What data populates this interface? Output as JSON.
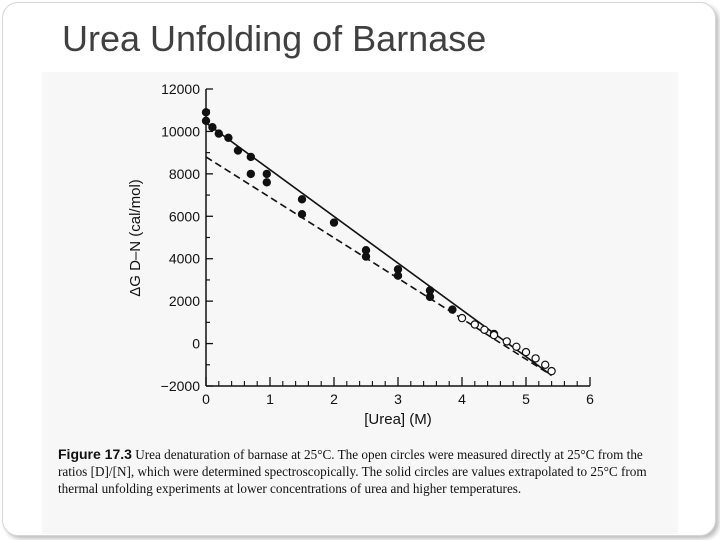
{
  "slide": {
    "title": "Urea Unfolding of Barnase"
  },
  "colors": {
    "ink": "#111111",
    "title": "#404040",
    "scan_bg": "#f7f7f7"
  },
  "caption": {
    "label": "Figure 17.3",
    "text": "Urea denaturation of barnase at 25°C. The open circles were measured directly at 25°C from the ratios [D]/[N], which were determined spectroscopically. The solid circles are values extrapolated to 25°C from thermal unfolding experiments at lower concentrations of urea and higher temperatures."
  },
  "chart_data": {
    "type": "scatter",
    "xlabel": "[Urea] (M)",
    "ylabel": "ΔG D–N (cal/mol)",
    "xlim": [
      0,
      6
    ],
    "ylim": [
      -2000,
      12000
    ],
    "x_ticks": [
      0,
      1,
      2,
      3,
      4,
      5,
      6
    ],
    "y_ticks": [
      -2000,
      0,
      2000,
      4000,
      6000,
      8000,
      10000,
      12000
    ],
    "y_tick_labels": [
      "−2000",
      "0",
      "2000",
      "4000",
      "6000",
      "8000",
      "10000",
      "12000"
    ],
    "grid": false,
    "series": [
      {
        "marker": "solid-circle",
        "points": [
          [
            0.0,
            10900
          ],
          [
            0.0,
            10500
          ],
          [
            0.1,
            10200
          ],
          [
            0.2,
            9900
          ],
          [
            0.35,
            9700
          ],
          [
            0.5,
            9100
          ],
          [
            0.7,
            8800
          ],
          [
            0.7,
            8000
          ],
          [
            0.95,
            8000
          ],
          [
            0.95,
            7600
          ],
          [
            1.5,
            6800
          ],
          [
            1.5,
            6100
          ],
          [
            2.0,
            5700
          ],
          [
            2.5,
            4400
          ],
          [
            2.5,
            4100
          ],
          [
            3.0,
            3500
          ],
          [
            3.0,
            3200
          ],
          [
            3.5,
            2500
          ],
          [
            3.5,
            2200
          ],
          [
            3.85,
            1600
          ],
          [
            4.5,
            450
          ]
        ]
      },
      {
        "marker": "open-circle",
        "points": [
          [
            4.0,
            1200
          ],
          [
            4.2,
            900
          ],
          [
            4.35,
            650
          ],
          [
            4.5,
            400
          ],
          [
            4.7,
            100
          ],
          [
            4.85,
            -150
          ],
          [
            5.0,
            -400
          ],
          [
            5.15,
            -700
          ],
          [
            5.3,
            -1000
          ],
          [
            5.4,
            -1300
          ]
        ]
      },
      {
        "style": "solid-line",
        "points": [
          [
            0.0,
            10400
          ],
          [
            5.4,
            -1500
          ]
        ]
      },
      {
        "style": "dashed-line",
        "points": [
          [
            0.0,
            8800
          ],
          [
            5.4,
            -1500
          ]
        ]
      }
    ]
  }
}
